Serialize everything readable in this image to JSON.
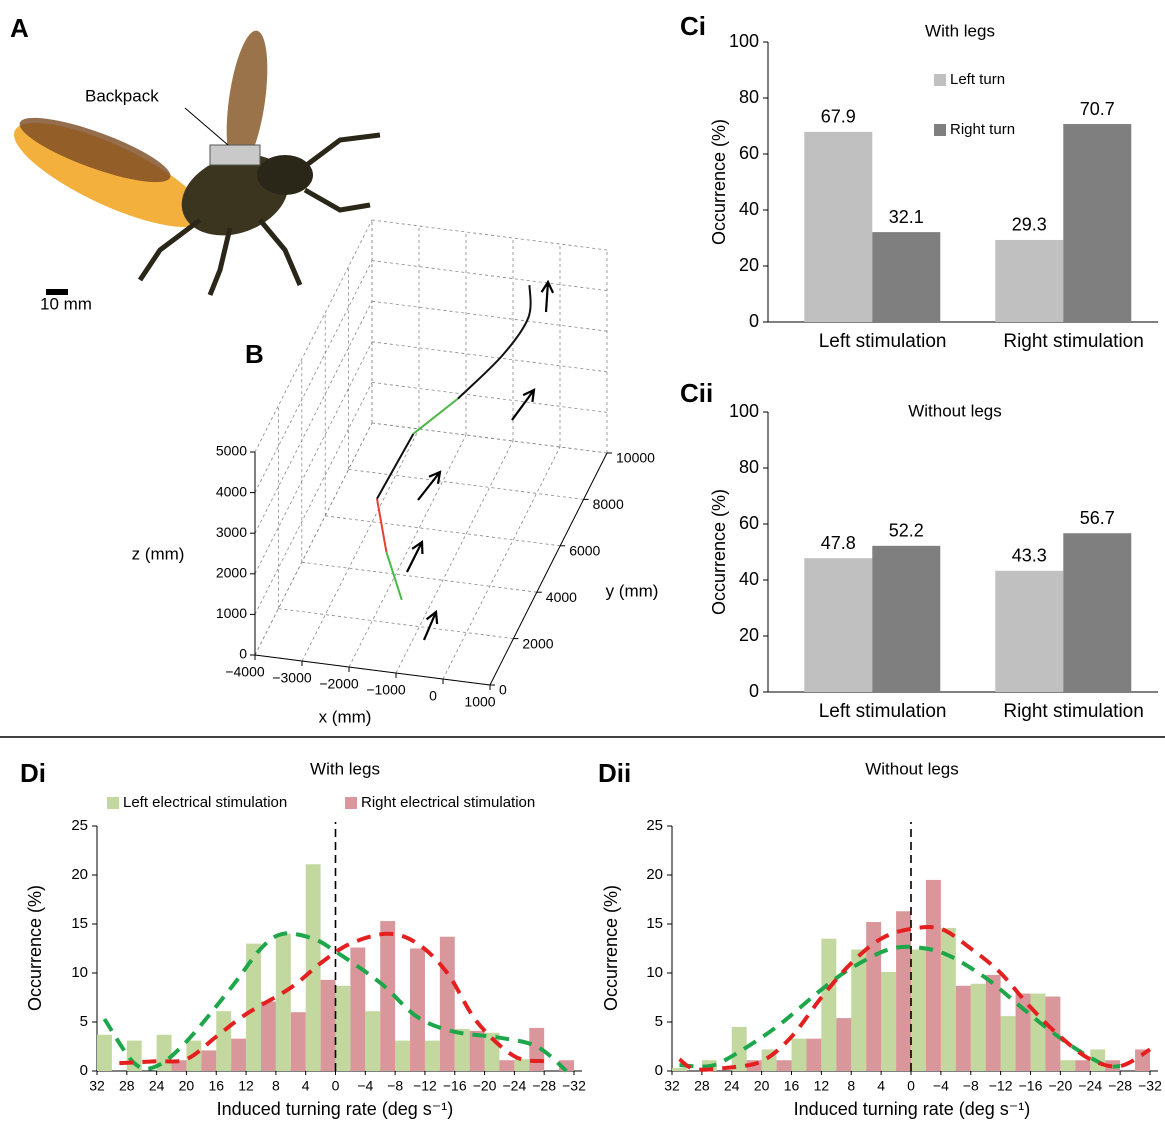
{
  "figure": {
    "panel": "A",
    "annotation": "Backpack",
    "scale_bar": "10 mm"
  },
  "chart_data": [
    {
      "type": "line3d",
      "panel": "B",
      "xlabel": "x (mm)",
      "ylabel": "y (mm)",
      "zlabel": "z (mm)",
      "xlim": [
        -4000,
        1000
      ],
      "ylim": [
        0,
        10000
      ],
      "zlim": [
        0,
        5000
      ],
      "grid": true,
      "xticks": [
        {
          "value": -4000,
          "label": "−4000"
        },
        {
          "value": -3000,
          "label": "−3000"
        },
        {
          "value": -2000,
          "label": "−2000"
        },
        {
          "value": -1000,
          "label": "−1000"
        },
        0,
        1000
      ],
      "yticks": [
        0,
        2000,
        4000,
        6000,
        8000,
        10000
      ],
      "zticks": [
        0,
        1000,
        2000,
        3000,
        4000,
        5000
      ],
      "series": [
        {
          "color": "#4cb848",
          "x": [
            -1500,
            -2000
          ],
          "y": [
            2500,
            3200
          ],
          "z": [
            300,
            1000
          ]
        },
        {
          "color": "#e8402f",
          "x": [
            -2000,
            -2400
          ],
          "y": [
            3200,
            4000
          ],
          "z": [
            1000,
            1800
          ]
        },
        {
          "color": "#111111",
          "x": [
            -2400,
            -2000
          ],
          "y": [
            4000,
            5500
          ],
          "z": [
            1800,
            2600
          ]
        },
        {
          "color": "#4cb848",
          "x": [
            -2000,
            -1300
          ],
          "y": [
            5500,
            6500
          ],
          "z": [
            2600,
            3000
          ]
        },
        {
          "color": "#111111",
          "x": [
            -1300,
            -600,
            -300,
            -400
          ],
          "y": [
            6500,
            7500,
            8500,
            9000
          ],
          "z": [
            3000,
            3600,
            4000,
            4500
          ]
        }
      ]
    },
    {
      "type": "bar",
      "panel": "Ci",
      "title": "With legs",
      "ylabel": "Occurrence (%)",
      "categories": [
        "Left stimulation",
        "Right stimulation"
      ],
      "series": [
        {
          "name": "Left turn",
          "color": "#c0c0c0",
          "values": [
            67.9,
            29.3
          ]
        },
        {
          "name": "Right turn",
          "color": "#7f7f7f",
          "values": [
            32.1,
            70.7
          ]
        }
      ],
      "ylim": [
        0,
        100
      ],
      "yticks": [
        0,
        20,
        40,
        60,
        80,
        100
      ]
    },
    {
      "type": "bar",
      "panel": "Cii",
      "title": "Without legs",
      "ylabel": "Occurrence (%)",
      "categories": [
        "Left stimulation",
        "Right stimulation"
      ],
      "series": [
        {
          "color": "#c0c0c0",
          "values": [
            47.8,
            43.3
          ]
        },
        {
          "color": "#7f7f7f",
          "values": [
            52.2,
            56.7
          ]
        }
      ],
      "ylim": [
        0,
        100
      ],
      "yticks": [
        0,
        20,
        40,
        60,
        80,
        100
      ]
    },
    {
      "type": "histogram",
      "panel": "Di",
      "title": "With legs",
      "xlabel": "Induced turning rate (deg s⁻¹)",
      "ylabel": "Occurrence (%)",
      "bins": [
        32,
        28,
        24,
        20,
        16,
        12,
        8,
        4,
        0,
        -4,
        -8,
        -12,
        -16,
        -20,
        -24,
        -28,
        -32
      ],
      "xlim": [
        32,
        -32
      ],
      "xticks": [
        32,
        28,
        24,
        20,
        16,
        12,
        8,
        4,
        0,
        {
          "value": -4,
          "label": "−4"
        },
        {
          "value": -8,
          "label": "−8"
        },
        {
          "value": -12,
          "label": "−12"
        },
        {
          "value": -16,
          "label": "−16"
        },
        {
          "value": -20,
          "label": "−20"
        },
        {
          "value": -24,
          "label": "−24"
        },
        {
          "value": -28,
          "label": "−28"
        },
        {
          "value": -32,
          "label": "−32"
        }
      ],
      "ylim": [
        0,
        25
      ],
      "yticks": [
        0,
        5,
        10,
        15,
        20,
        25
      ],
      "series": [
        {
          "name": "Left electrical stimulation",
          "color": "#c2d89f",
          "values": [
            3.7,
            3.1,
            3.7,
            3.1,
            6.1,
            13,
            14,
            21.1,
            8.7,
            6.1,
            3.1,
            3.1,
            4.3,
            3.9,
            1.2,
            0
          ]
        },
        {
          "name": "Right electrical stimulation",
          "color": "#d9979b",
          "values": [
            0,
            0,
            1.1,
            2.1,
            3.3,
            7.1,
            6,
            9.3,
            12.6,
            15.3,
            12.5,
            13.7,
            4.1,
            1.1,
            4.4,
            1.1
          ]
        }
      ],
      "fits": [
        {
          "color": "#1ea64b",
          "dash": true,
          "x": [
            31,
            27,
            24,
            20,
            14,
            10,
            7,
            3,
            0,
            -6,
            -11,
            -16,
            -22,
            -27,
            -31
          ],
          "values": [
            5.3,
            0.8,
            0.5,
            3,
            8.5,
            12.5,
            14,
            13.5,
            12.2,
            9,
            5.5,
            4,
            3.4,
            2.5,
            0
          ]
        },
        {
          "color": "#e41f1f",
          "dash": true,
          "x": [
            29,
            24,
            20,
            16,
            12,
            6,
            2,
            -2,
            -7,
            -11,
            -15,
            -19,
            -24,
            -28
          ],
          "values": [
            0.8,
            1,
            1.2,
            3.5,
            5.8,
            8.5,
            11,
            13,
            14,
            13,
            10,
            5,
            1.5,
            1
          ]
        }
      ]
    },
    {
      "type": "histogram",
      "panel": "Dii",
      "title": "Without legs",
      "xlabel": "Induced turning rate (deg s⁻¹)",
      "ylabel": "Occurrence (%)",
      "bins": [
        32,
        28,
        24,
        20,
        16,
        12,
        8,
        4,
        0,
        -4,
        -8,
        -12,
        -16,
        -20,
        -24,
        -28,
        -32
      ],
      "xlim": [
        32,
        -32
      ],
      "xticks": [
        32,
        28,
        24,
        20,
        16,
        12,
        8,
        4,
        0,
        {
          "value": -4,
          "label": "−4"
        },
        {
          "value": -8,
          "label": "−8"
        },
        {
          "value": -12,
          "label": "−12"
        },
        {
          "value": -16,
          "label": "−16"
        },
        {
          "value": -20,
          "label": "−20"
        },
        {
          "value": -24,
          "label": "−24"
        },
        {
          "value": -28,
          "label": "−28"
        },
        {
          "value": -32,
          "label": "−32"
        }
      ],
      "ylim": [
        0,
        25
      ],
      "yticks": [
        0,
        5,
        10,
        15,
        20,
        25
      ],
      "series": [
        {
          "color": "#c2d89f",
          "values": [
            0.3,
            1.1,
            4.5,
            2.2,
            3.3,
            13.5,
            12.4,
            10.1,
            12.4,
            14.6,
            8.9,
            5.6,
            7.9,
            1.1,
            2.2,
            0
          ]
        },
        {
          "color": "#d9979b",
          "values": [
            0,
            0,
            1.1,
            1.1,
            3.3,
            5.4,
            15.2,
            16.3,
            19.5,
            8.7,
            9.8,
            7.9,
            7.6,
            1.1,
            1.1,
            2.2
          ]
        }
      ],
      "fits": [
        {
          "color": "#1ea64b",
          "dash": true,
          "x": [
            31,
            27,
            24,
            18,
            12,
            8,
            3,
            -1,
            -5,
            -10,
            -14,
            -18,
            -22,
            -26,
            -28
          ],
          "values": [
            0.6,
            0.5,
            1.5,
            4.5,
            8.3,
            10.5,
            12.4,
            12.6,
            11.8,
            9.5,
            7,
            4.5,
            2.3,
            0.6,
            0.5
          ]
        },
        {
          "color": "#e41f1f",
          "dash": true,
          "x": [
            31,
            29,
            25,
            20,
            16,
            12,
            8,
            4,
            0,
            -4,
            -8,
            -12,
            -16,
            -20,
            -24,
            -28,
            -32
          ],
          "values": [
            1.2,
            0.2,
            0.3,
            1,
            3.5,
            7.5,
            11,
            13.5,
            14.5,
            14.5,
            12.5,
            10,
            6.5,
            3.5,
            1.2,
            0.5,
            2.2
          ]
        }
      ]
    }
  ]
}
